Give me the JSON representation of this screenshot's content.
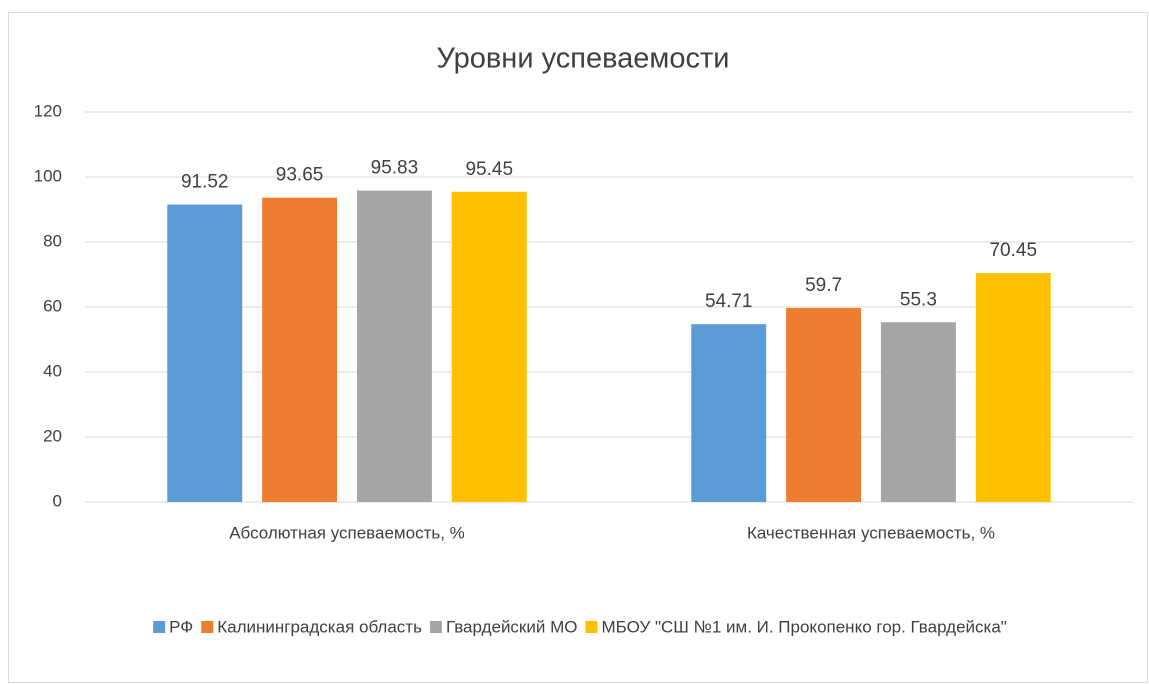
{
  "chart_data": {
    "type": "bar",
    "title": "Уровни успеваемости",
    "categories": [
      "Абсолютная успеваемость, %",
      "Качественная успеваемость, %"
    ],
    "series": [
      {
        "name": "РФ",
        "color": "#5b9bd5",
        "values": [
          91.52,
          54.71
        ]
      },
      {
        "name": "Калининградская область",
        "color": "#ed7d31",
        "values": [
          93.65,
          59.7
        ]
      },
      {
        "name": "Гвардейский МО",
        "color": "#a5a5a5",
        "values": [
          95.83,
          55.3
        ]
      },
      {
        "name": "МБОУ \"СШ №1 им. И. Прокопенко гор. Гвардейска\"",
        "color": "#ffc000",
        "values": [
          95.45,
          70.45
        ]
      }
    ],
    "ylim": [
      0,
      120
    ],
    "yticks": [
      0,
      20,
      40,
      60,
      80,
      100,
      120
    ],
    "grid": true,
    "legend": "bottom"
  }
}
